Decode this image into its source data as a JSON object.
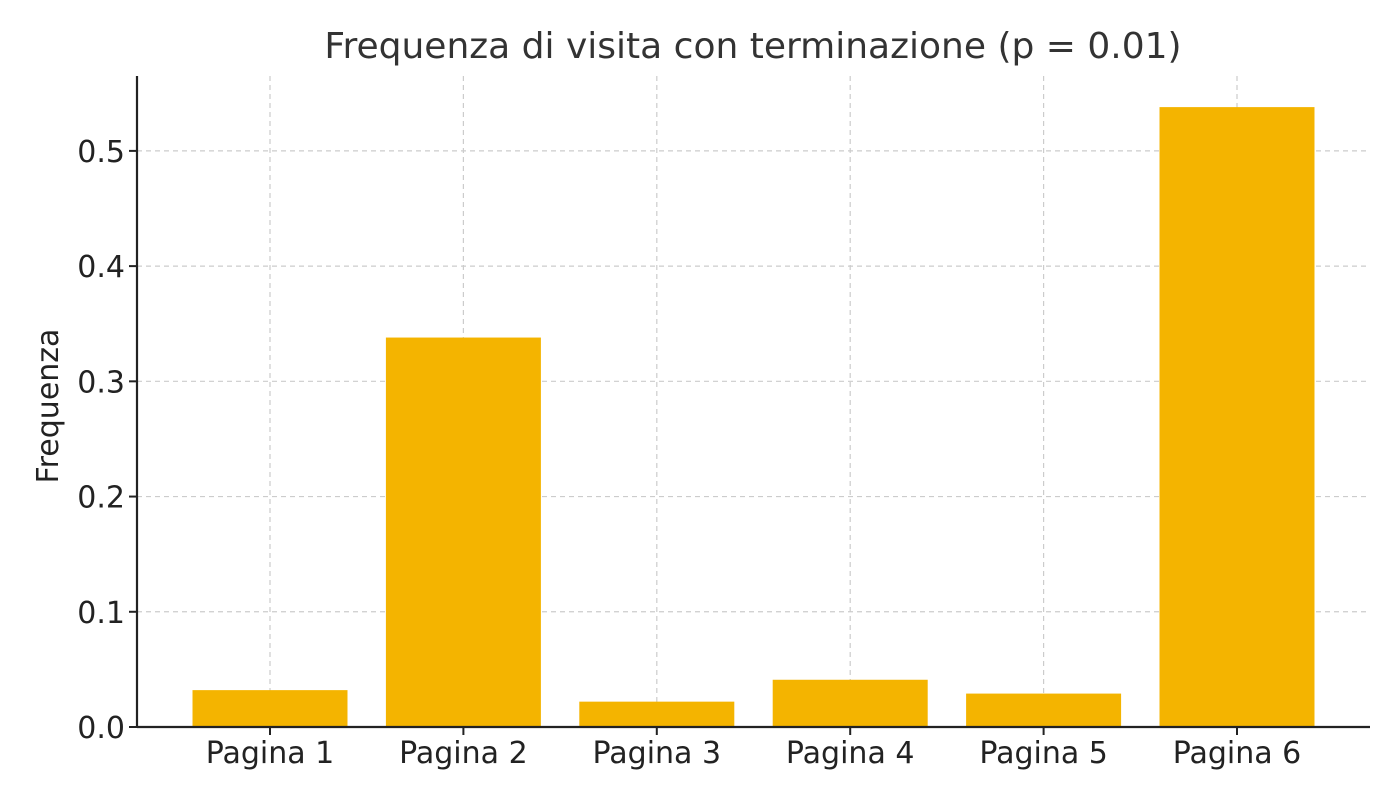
{
  "chart_data": {
    "type": "bar",
    "title": "Frequenza di visita con terminazione (p = 0.01)",
    "xlabel": "",
    "ylabel": "Frequenza",
    "categories": [
      "Pagina 1",
      "Pagina 2",
      "Pagina 3",
      "Pagina 4",
      "Pagina 5",
      "Pagina 6"
    ],
    "values": [
      0.032,
      0.338,
      0.022,
      0.041,
      0.029,
      0.538
    ],
    "ylim": [
      0,
      0.565
    ],
    "yticks": [
      "0.0",
      "0.1",
      "0.2",
      "0.3",
      "0.4",
      "0.5"
    ],
    "bar_color": "#F4B400",
    "grid": true
  }
}
